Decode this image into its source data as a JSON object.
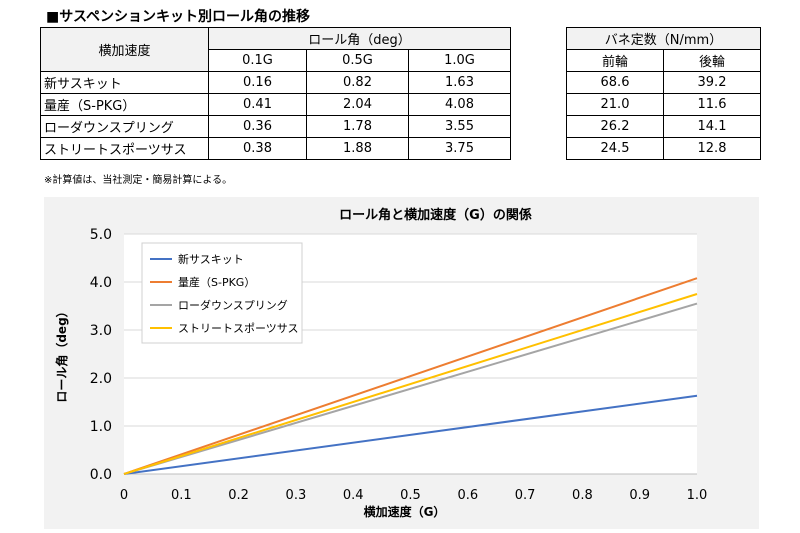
{
  "heading": "■サスペンションキット別ロール角の推移",
  "roll_table": {
    "accel_header": "横加速度",
    "roll_header": "ロール角（deg）",
    "g_headers": [
      "0.1G",
      "0.5G",
      "1.0G"
    ],
    "rows": [
      {
        "name": "新サスキット",
        "values": [
          "0.16",
          "0.82",
          "1.63"
        ]
      },
      {
        "name": "量産（S-PKG）",
        "values": [
          "0.41",
          "2.04",
          "4.08"
        ]
      },
      {
        "name": "ローダウンスプリング",
        "values": [
          "0.36",
          "1.78",
          "3.55"
        ]
      },
      {
        "name": "ストリートスポーツサス",
        "values": [
          "0.38",
          "1.88",
          "3.75"
        ]
      }
    ]
  },
  "spring_table": {
    "header": "バネ定数（N/mm）",
    "sub_headers": [
      "前輪",
      "後輪"
    ],
    "rows": [
      [
        "68.6",
        "39.2"
      ],
      [
        "21.0",
        "11.6"
      ],
      [
        "26.2",
        "14.1"
      ],
      [
        "24.5",
        "12.8"
      ]
    ]
  },
  "footnote": "※計算値は、当社測定・簡易計算による。",
  "chart_data": {
    "type": "line",
    "title": "ロール角と横加速度（G）の関係",
    "xlabel": "横加速度（G）",
    "ylabel": "ロール角（deg）",
    "xlim": [
      0,
      1.0
    ],
    "ylim": [
      0,
      5.0
    ],
    "x_ticks": [
      "0",
      "0.1",
      "0.2",
      "0.3",
      "0.4",
      "0.5",
      "0.6",
      "0.7",
      "0.8",
      "0.9",
      "1.0"
    ],
    "y_ticks": [
      "0.0",
      "1.0",
      "2.0",
      "3.0",
      "4.0",
      "5.0"
    ],
    "grid": "horizontal",
    "legend_position": "top-left",
    "series": [
      {
        "name": "新サスキット",
        "color": "#4472c4",
        "x": [
          0,
          1.0
        ],
        "y": [
          0,
          1.63
        ]
      },
      {
        "name": "量産（S-PKG）",
        "color": "#ed7d31",
        "x": [
          0,
          1.0
        ],
        "y": [
          0,
          4.08
        ]
      },
      {
        "name": "ローダウンスプリング",
        "color": "#a5a5a5",
        "x": [
          0,
          1.0
        ],
        "y": [
          0,
          3.55
        ]
      },
      {
        "name": "ストリートスポーツサス",
        "color": "#ffc000",
        "x": [
          0,
          1.0
        ],
        "y": [
          0,
          3.75
        ]
      }
    ]
  }
}
